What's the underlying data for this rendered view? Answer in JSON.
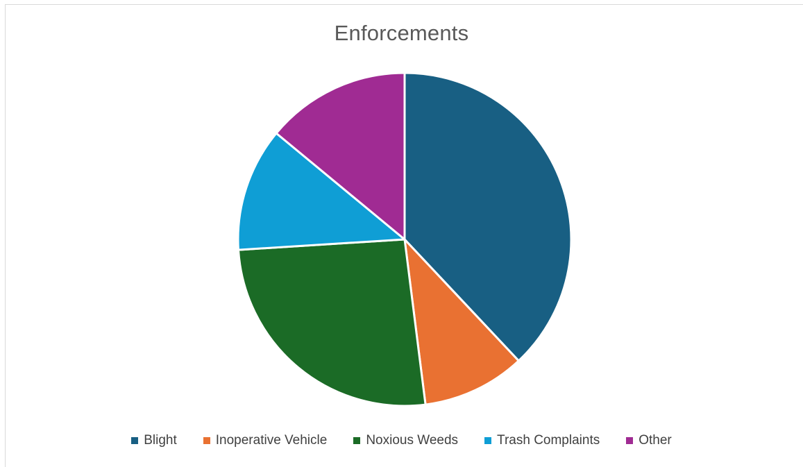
{
  "chart_data": {
    "type": "pie",
    "title": "Enforcements",
    "legend_position": "bottom",
    "slices": [
      {
        "label": "Blight",
        "value": 38,
        "color": "#185F83"
      },
      {
        "label": "Inoperative Vehicle",
        "value": 10,
        "color": "#E97132"
      },
      {
        "label": "Noxious Weeds",
        "value": 26,
        "color": "#1B6B26"
      },
      {
        "label": "Trash Complaints",
        "value": 12,
        "color": "#0F9ED5"
      },
      {
        "label": "Other",
        "value": 14,
        "color": "#A02B93"
      }
    ]
  }
}
